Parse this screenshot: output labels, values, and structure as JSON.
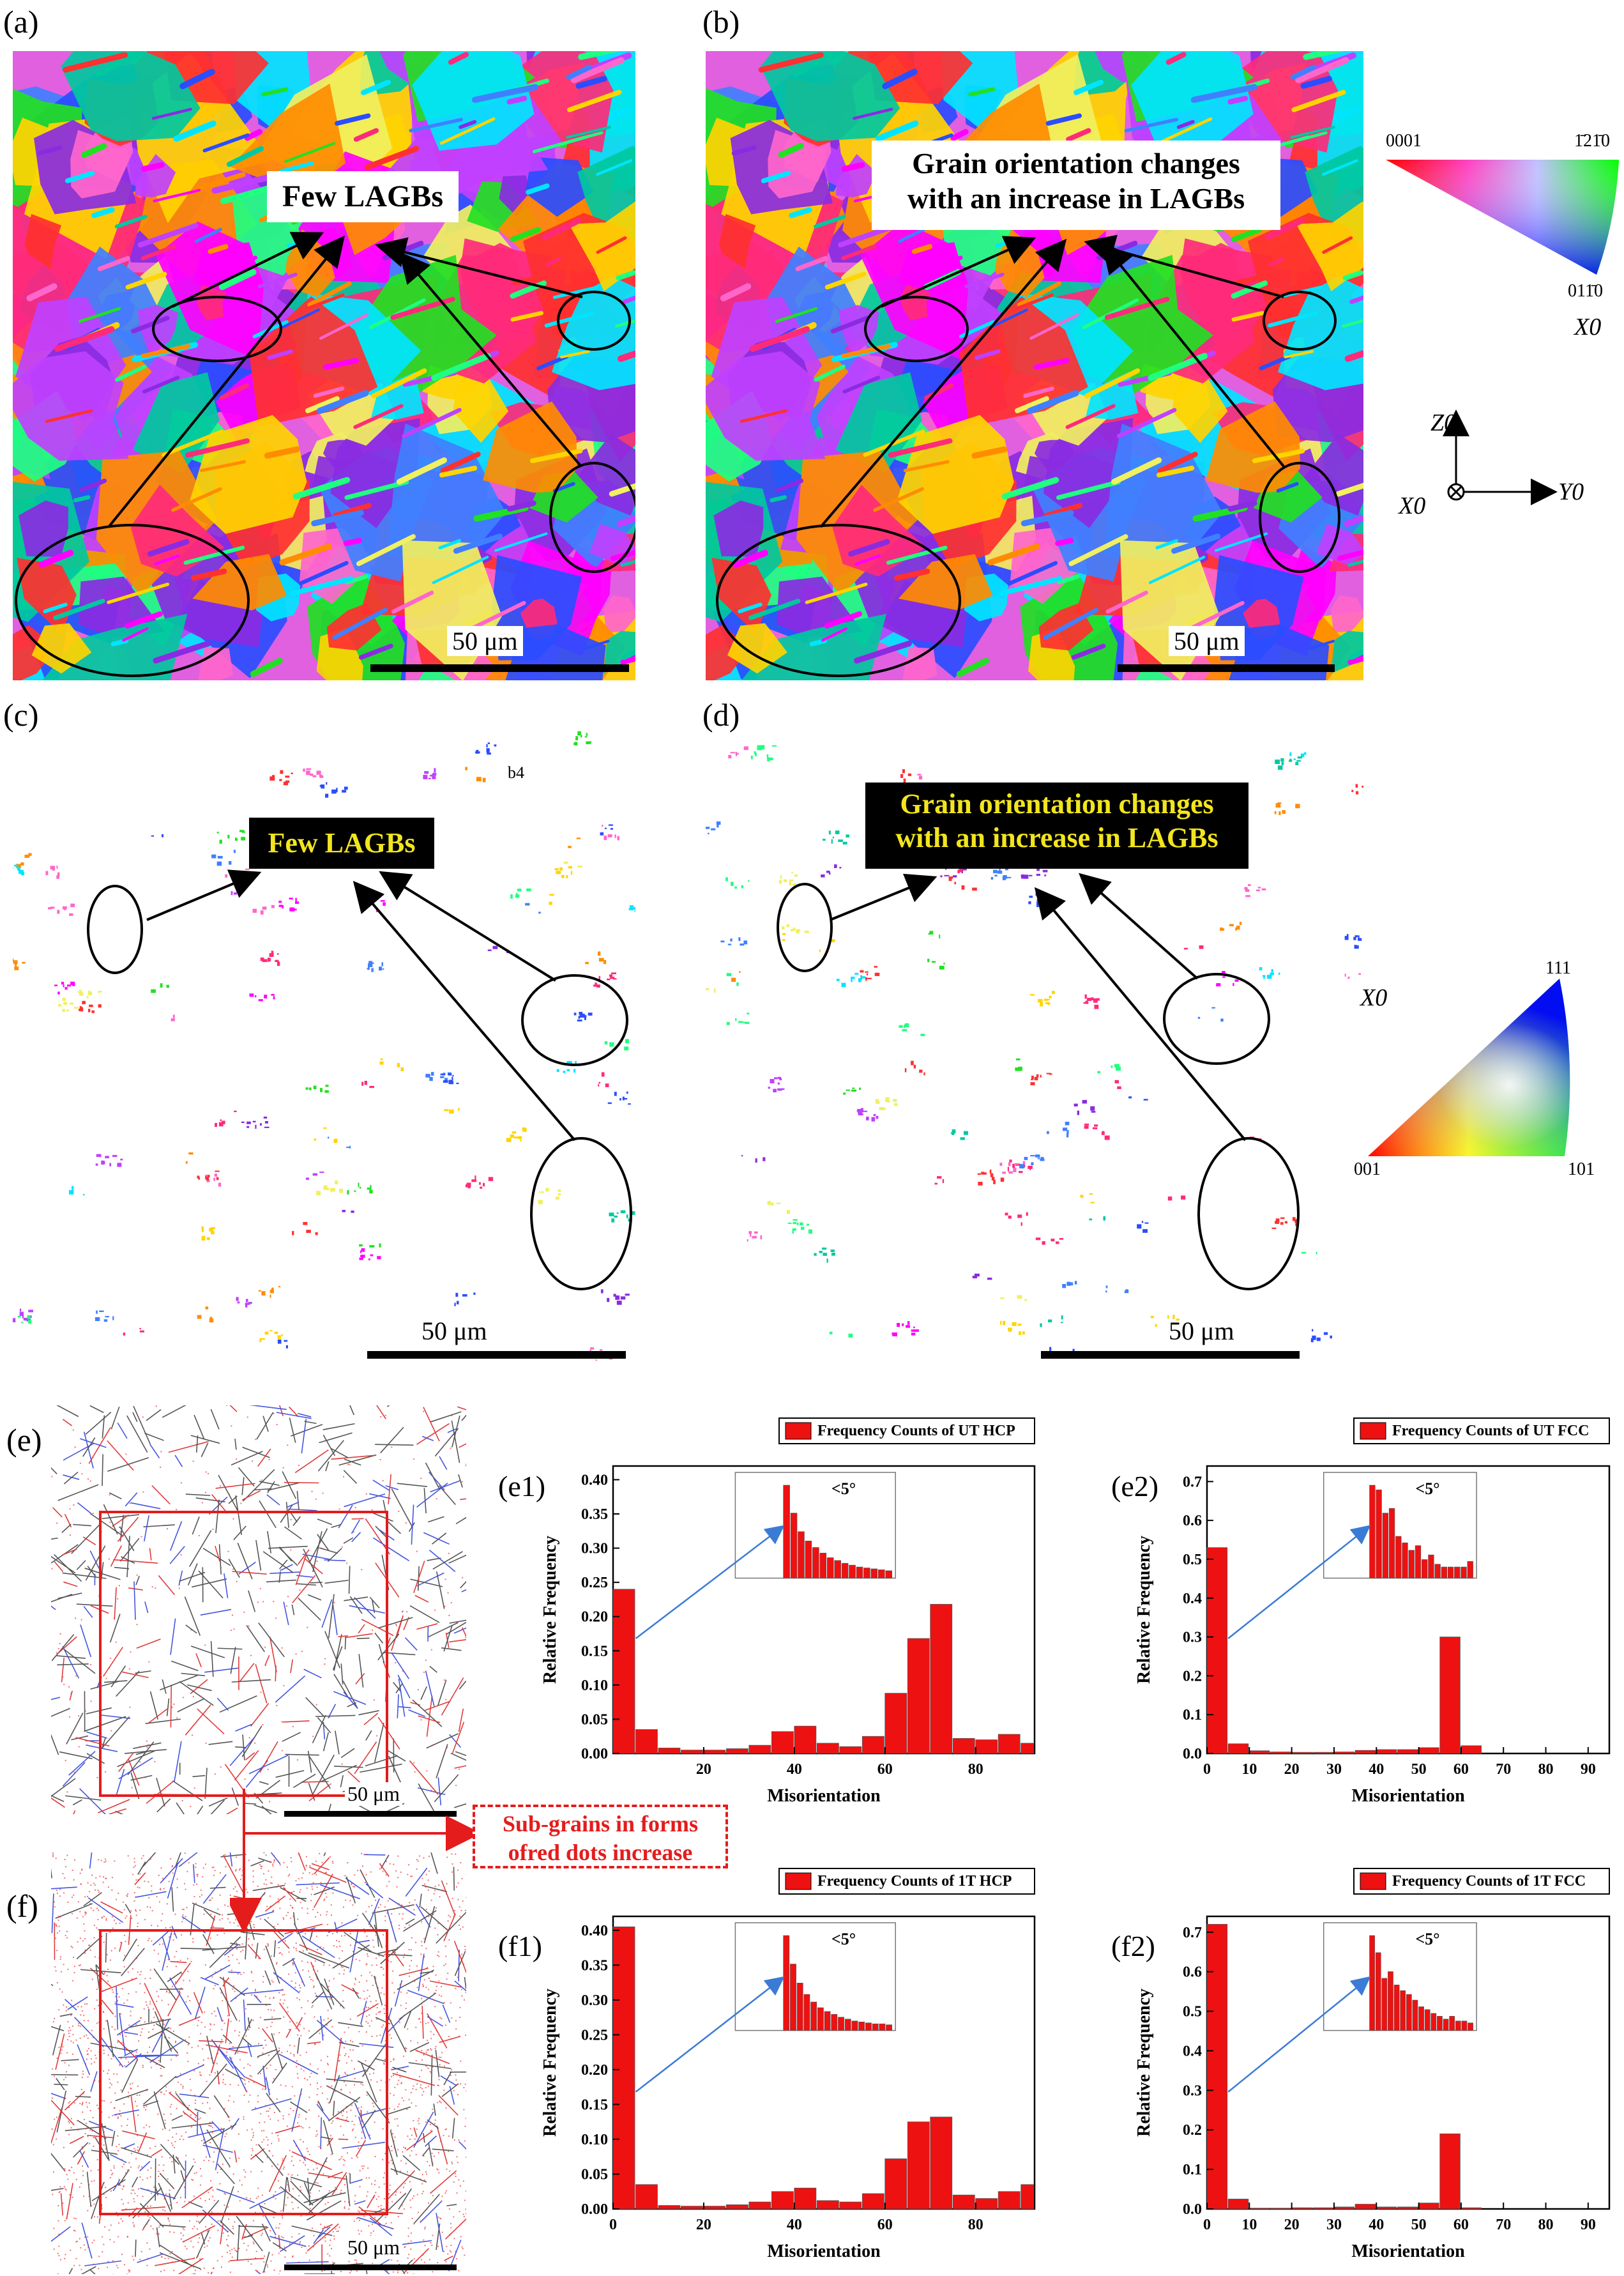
{
  "panels": {
    "a": "(a)",
    "b": "(b)",
    "c": "(c)",
    "d": "(d)",
    "e": "(e)",
    "f": "(f)",
    "e1": "(e1)",
    "e2": "(e2)",
    "f1": "(f1)",
    "f2": "(f2)"
  },
  "scale_bar": "50 μm",
  "callouts": {
    "a": "Few LAGBs",
    "b_line1": "Grain orientation changes",
    "b_line2": "with an increase in LAGBs",
    "c": "Few LAGBs",
    "d_line1": "Grain orientation changes",
    "d_line2": "with an increase in LAGBs",
    "c_small": "b4"
  },
  "hcp_legend": {
    "top_left": "0001",
    "top_right": "1̄21̄0",
    "bottom": "011̄0",
    "axis": "X0"
  },
  "axes_legend": {
    "z": "Z0",
    "y": "Y0",
    "x": "X0"
  },
  "fcc_legend": {
    "axis": "X0",
    "top": "111",
    "left": "001",
    "right": "101"
  },
  "subgrain_note": {
    "line1": "Sub-grains in forms",
    "line2": "ofred dots increase"
  },
  "chart_data": [
    {
      "id": "e1",
      "type": "bar",
      "title": "",
      "legend": "Frequency Counts of UT HCP",
      "xlabel": "Misorientation",
      "ylabel": "Relative Frequency",
      "xlim": [
        0,
        93
      ],
      "ylim": [
        0,
        0.42
      ],
      "xticks": [
        20,
        40,
        60,
        80
      ],
      "yticks": [
        0.0,
        0.05,
        0.1,
        0.15,
        0.2,
        0.25,
        0.3,
        0.35,
        0.4
      ],
      "ytick_labels": [
        "0.00",
        "0.05",
        "0.10",
        "0.15",
        "0.20",
        "0.25",
        "0.30",
        "0.35",
        "0.40"
      ],
      "bin_width": 5,
      "x": [
        2.5,
        7.5,
        12.5,
        17.5,
        22.5,
        27.5,
        32.5,
        37.5,
        42.5,
        47.5,
        52.5,
        57.5,
        62.5,
        67.5,
        72.5,
        77.5,
        82.5,
        87.5,
        92.5
      ],
      "values": [
        0.24,
        0.035,
        0.008,
        0.005,
        0.005,
        0.007,
        0.012,
        0.032,
        0.04,
        0.015,
        0.01,
        0.025,
        0.088,
        0.168,
        0.218,
        0.022,
        0.02,
        0.028,
        0.015
      ],
      "inset": {
        "label": "<5°",
        "values": [
          1.0,
          0.7,
          0.5,
          0.4,
          0.33,
          0.27,
          0.22,
          0.19,
          0.16,
          0.14,
          0.12,
          0.11,
          0.1,
          0.09,
          0.08
        ]
      }
    },
    {
      "id": "e2",
      "type": "bar",
      "title": "",
      "legend": "Frequency Counts of UT FCC",
      "xlabel": "Misorientation",
      "ylabel": "Relative Frequency",
      "xlim": [
        0,
        95
      ],
      "ylim": [
        0,
        0.74
      ],
      "xticks": [
        0,
        10,
        20,
        30,
        40,
        50,
        60,
        70,
        80,
        90
      ],
      "yticks": [
        0.0,
        0.1,
        0.2,
        0.3,
        0.4,
        0.5,
        0.6,
        0.7
      ],
      "ytick_labels": [
        "0.0",
        "0.1",
        "0.2",
        "0.3",
        "0.4",
        "0.5",
        "0.6",
        "0.7"
      ],
      "bin_width": 5,
      "x": [
        2.5,
        7.5,
        12.5,
        17.5,
        22.5,
        27.5,
        32.5,
        37.5,
        42.5,
        47.5,
        52.5,
        57.5,
        62.5
      ],
      "values": [
        0.53,
        0.025,
        0.007,
        0.004,
        0.003,
        0.003,
        0.004,
        0.008,
        0.01,
        0.01,
        0.015,
        0.3,
        0.02
      ],
      "inset": {
        "label": "<5°",
        "values": [
          1.0,
          0.95,
          0.7,
          0.75,
          0.45,
          0.38,
          0.3,
          0.35,
          0.2,
          0.25,
          0.15,
          0.12,
          0.12,
          0.12,
          0.12,
          0.18
        ]
      }
    },
    {
      "id": "f1",
      "type": "bar",
      "title": "",
      "legend": "Frequency Counts of 1T HCP",
      "xlabel": "Misorientation",
      "ylabel": "Relative Frequency",
      "xlim": [
        0,
        93
      ],
      "ylim": [
        0,
        0.42
      ],
      "xticks": [
        0,
        20,
        40,
        60,
        80
      ],
      "yticks": [
        0.0,
        0.05,
        0.1,
        0.15,
        0.2,
        0.25,
        0.3,
        0.35,
        0.4
      ],
      "ytick_labels": [
        "0.00",
        "0.05",
        "0.10",
        "0.15",
        "0.20",
        "0.25",
        "0.30",
        "0.35",
        "0.40"
      ],
      "bin_width": 5,
      "x": [
        2.5,
        7.5,
        12.5,
        17.5,
        22.5,
        27.5,
        32.5,
        37.5,
        42.5,
        47.5,
        52.5,
        57.5,
        62.5,
        67.5,
        72.5,
        77.5,
        82.5,
        87.5,
        92.5
      ],
      "values": [
        0.405,
        0.035,
        0.005,
        0.004,
        0.004,
        0.006,
        0.01,
        0.025,
        0.03,
        0.012,
        0.01,
        0.022,
        0.072,
        0.125,
        0.132,
        0.02,
        0.015,
        0.025,
        0.035
      ],
      "inset": {
        "label": "<5°",
        "values": [
          1.0,
          0.7,
          0.5,
          0.38,
          0.3,
          0.24,
          0.2,
          0.17,
          0.14,
          0.12,
          0.1,
          0.09,
          0.08,
          0.07,
          0.07,
          0.06
        ]
      }
    },
    {
      "id": "f2",
      "type": "bar",
      "title": "",
      "legend": "Frequency Counts of 1T FCC",
      "xlabel": "Misorientation",
      "ylabel": "Relative Frequency",
      "xlim": [
        0,
        95
      ],
      "ylim": [
        0,
        0.74
      ],
      "xticks": [
        0,
        10,
        20,
        30,
        40,
        50,
        60,
        70,
        80,
        90
      ],
      "yticks": [
        0.0,
        0.1,
        0.2,
        0.3,
        0.4,
        0.5,
        0.6,
        0.7
      ],
      "ytick_labels": [
        "0.0",
        "0.1",
        "0.2",
        "0.3",
        "0.4",
        "0.5",
        "0.6",
        "0.7"
      ],
      "bin_width": 5,
      "x": [
        2.5,
        7.5,
        12.5,
        17.5,
        22.5,
        27.5,
        32.5,
        37.5,
        42.5,
        47.5,
        52.5,
        57.5,
        62.5
      ],
      "values": [
        0.72,
        0.025,
        0.002,
        0.002,
        0.003,
        0.003,
        0.005,
        0.012,
        0.005,
        0.005,
        0.015,
        0.19,
        0.003
      ],
      "inset": {
        "label": "<5°",
        "values": [
          1.0,
          0.82,
          0.55,
          0.62,
          0.48,
          0.42,
          0.38,
          0.32,
          0.25,
          0.22,
          0.18,
          0.15,
          0.12,
          0.15,
          0.1,
          0.1,
          0.08
        ]
      }
    }
  ]
}
